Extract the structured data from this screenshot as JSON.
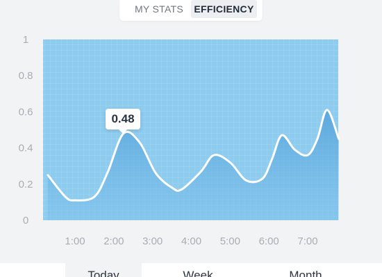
{
  "tabs": {
    "my_stats": "MY STATS",
    "efficiency": "EFFICIENCY",
    "active": "efficiency"
  },
  "tooltip": {
    "value": "0.48"
  },
  "periods": {
    "today": "Today",
    "week": "Week",
    "month": "Month"
  },
  "colors": {
    "plot_background": "#8dcbef",
    "area_fill": "#5aa8dc",
    "line": "#ffffff"
  },
  "chart_data": {
    "type": "area",
    "title": "",
    "xlabel": "",
    "ylabel": "",
    "ylim": [
      0,
      1
    ],
    "xlim": [
      "0:18",
      "7:48"
    ],
    "yticks": [
      "0",
      "0.2",
      "0.4",
      "0.6",
      "0.8",
      "1"
    ],
    "xticks": [
      "1:00",
      "2:00",
      "3:00",
      "4:00",
      "5:00",
      "6:00",
      "7:00"
    ],
    "grid": true,
    "x": [
      "0:18",
      "0:45",
      "1:00",
      "1:30",
      "1:50",
      "2:15",
      "2:40",
      "3:05",
      "3:30",
      "3:45",
      "4:15",
      "4:35",
      "5:00",
      "5:25",
      "5:50",
      "6:05",
      "6:20",
      "6:40",
      "7:00",
      "7:15",
      "7:30",
      "7:48"
    ],
    "series": [
      {
        "values": [
          0.25,
          0.13,
          0.11,
          0.13,
          0.26,
          0.48,
          0.43,
          0.26,
          0.18,
          0.17,
          0.27,
          0.36,
          0.32,
          0.22,
          0.23,
          0.34,
          0.47,
          0.39,
          0.36,
          0.45,
          0.61,
          0.45
        ]
      }
    ]
  }
}
